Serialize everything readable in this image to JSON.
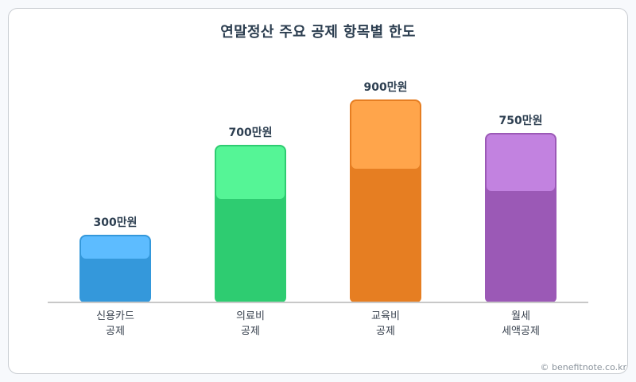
{
  "chart_data": {
    "type": "bar",
    "title": "연말정산 주요 공제 항목별 한도",
    "categories": [
      "신용카드 공제",
      "의료비 공제",
      "교육비 공제",
      "월세 세액공제"
    ],
    "category_lines": [
      [
        "신용카드",
        "공제"
      ],
      [
        "의료비",
        "공제"
      ],
      [
        "교육비",
        "공제"
      ],
      [
        "월세",
        "세액공제"
      ]
    ],
    "values": [
      300,
      700,
      900,
      750
    ],
    "unit": "만원",
    "value_labels": [
      "300만원",
      "700만원",
      "900만원",
      "750만원"
    ],
    "xlabel": "",
    "ylabel": "",
    "ylim": [
      0,
      900
    ],
    "grid": false,
    "legend": null
  },
  "colors": {
    "bars": [
      "#3498db",
      "#2ecc71",
      "#e67e22",
      "#9b59b6"
    ],
    "highlights": [
      "#5dbcff",
      "#55f596",
      "#ffa54b",
      "#c282e0"
    ]
  },
  "credit": "© benefitnote.co.kr"
}
